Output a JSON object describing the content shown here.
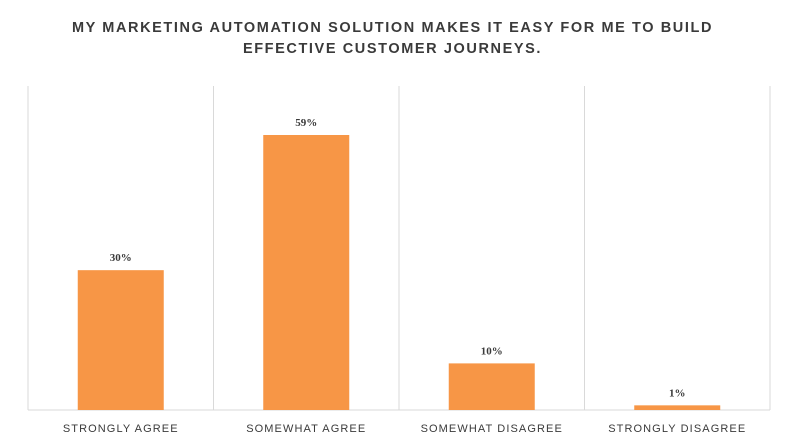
{
  "chart_data": {
    "type": "bar",
    "title_lines": [
      "MY MARKETING AUTOMATION SOLUTION MAKES IT EASY FOR ME TO BUILD",
      "EFFECTIVE CUSTOMER JOURNEYS."
    ],
    "categories": [
      "STRONGLY AGREE",
      "SOMEWHAT AGREE",
      "SOMEWHAT DISAGREE",
      "STRONGLY DISAGREE"
    ],
    "values": [
      30,
      59,
      10,
      1
    ],
    "data_labels": [
      "30%",
      "59%",
      "10%",
      "1%"
    ],
    "unit": "%",
    "ylim": [
      0,
      70
    ],
    "grid": "vertical separators",
    "legend": "none",
    "bar_color": "#F79646",
    "separator_color": "#D9D9D9",
    "text_color": "#3A3A3A"
  }
}
